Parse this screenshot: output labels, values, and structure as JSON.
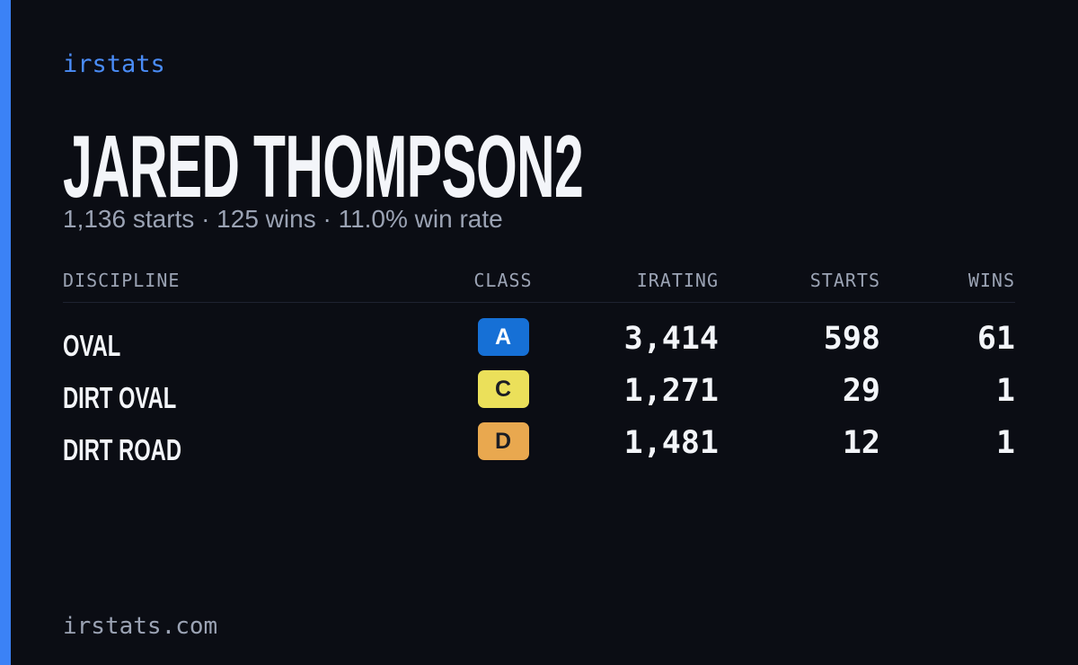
{
  "brand": "irstats",
  "driver": {
    "name": "JARED THOMPSON2",
    "summary": "1,136 starts · 125 wins · 11.0% win rate"
  },
  "table": {
    "headers": [
      "DISCIPLINE",
      "CLASS",
      "IRATING",
      "STARTS",
      "WINS"
    ],
    "rows": [
      {
        "discipline": "OVAL",
        "class": "A",
        "class_color": "#1670d6",
        "class_text_color": "#ffffff",
        "irating": "3,414",
        "starts": "598",
        "wins": "61"
      },
      {
        "discipline": "DIRT OVAL",
        "class": "C",
        "class_color": "#ebe05a",
        "class_text_color": "#1b1d24",
        "irating": "1,271",
        "starts": "29",
        "wins": "1"
      },
      {
        "discipline": "DIRT ROAD",
        "class": "D",
        "class_color": "#e9a84f",
        "class_text_color": "#1b1d24",
        "irating": "1,481",
        "starts": "12",
        "wins": "1"
      }
    ]
  },
  "footer": "irstats.com"
}
